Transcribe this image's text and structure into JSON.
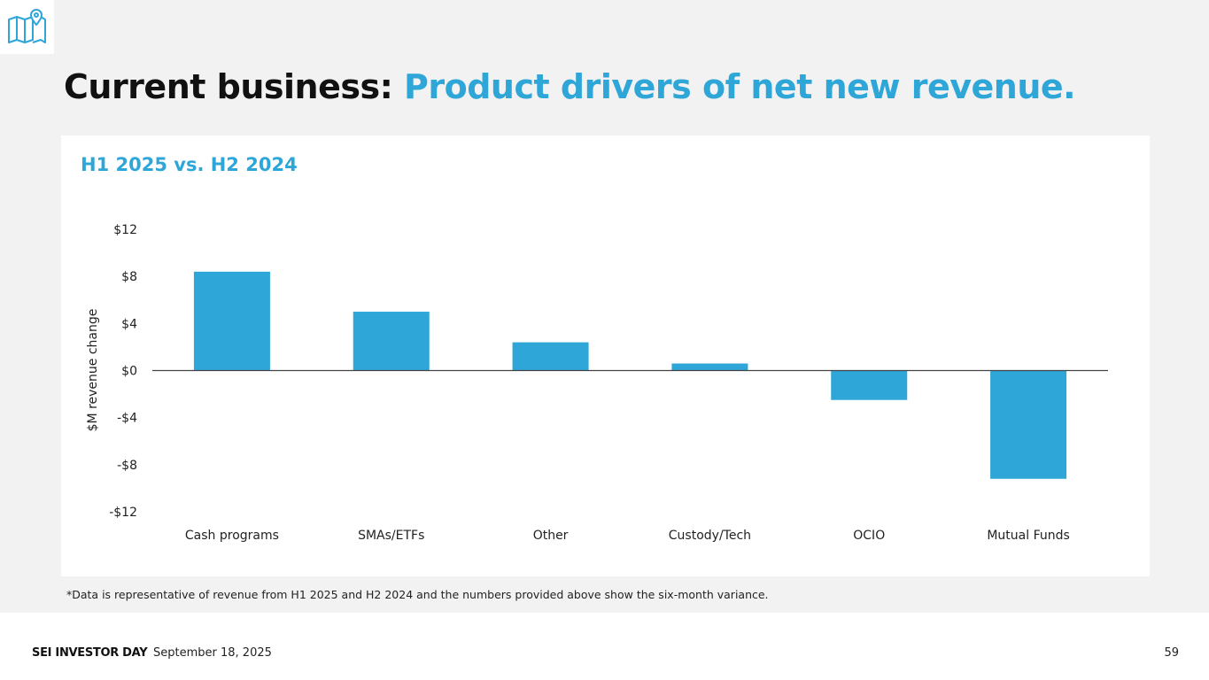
{
  "header": {
    "logo_icon": "map-pin-icon",
    "title_part1": "Current business:",
    "title_part2": "Product drivers of net new revenue."
  },
  "card": {
    "subtitle": "H1 2025 vs. H2 2024"
  },
  "chart_data": {
    "type": "bar",
    "title": "H1 2025 vs. H2 2024",
    "xlabel": "",
    "ylabel": "$M revenue change",
    "ylim": [
      -12,
      12
    ],
    "yticks": [
      12,
      8,
      4,
      0,
      -4,
      -8,
      -12
    ],
    "ytick_labels": [
      "$12",
      "$8",
      "$4",
      "$0",
      "-$4",
      "-$8",
      "-$12"
    ],
    "categories": [
      "Cash programs",
      "SMAs/ETFs",
      "Other",
      "Custody/Tech",
      "OCIO",
      "Mutual Funds"
    ],
    "values": [
      8.4,
      5.0,
      2.4,
      0.6,
      -2.5,
      -9.2
    ],
    "bar_color": "#2ea6d8",
    "grid": false
  },
  "footnote": "*Data is representative of revenue from H1 2025 and H2 2024 and the numbers provided above show the six-month variance.",
  "footer": {
    "brand": "SEI INVESTOR DAY",
    "date": "September 18, 2025",
    "page": "59"
  }
}
